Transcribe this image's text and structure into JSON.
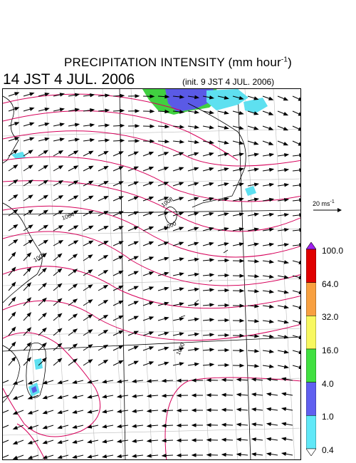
{
  "title": {
    "main": "PRECIPITATION INTENSITY (mm hour",
    "unit_exp": "-1",
    "close": ")",
    "valid_time": "14 JST 4 JUL. 2006",
    "init_time": "(init. 9 JST 4 JUL. 2006)"
  },
  "reference_vector": {
    "label": "20 ms",
    "label_exp": "-1"
  },
  "colorbar": {
    "levels": [
      "100.0",
      "64.0",
      "32.0",
      "16.0",
      "4.0",
      "1.0",
      "0.4"
    ],
    "colors": [
      "#a020f0",
      "#e00000",
      "#f8a040",
      "#f8f860",
      "#40e040",
      "#6060f0",
      "#60e8f8",
      "#ffffff"
    ]
  },
  "isobar_labels": [
    "1004",
    "1008",
    "1008",
    "1000",
    "1000"
  ],
  "map_colors": {
    "isobar": "#d6005a",
    "grid": "#bbbbbb",
    "coast": "#000000",
    "precip_light": "#5ee0f0",
    "precip_mid": "#5a5ae6",
    "precip_heavy": "#40d040"
  }
}
